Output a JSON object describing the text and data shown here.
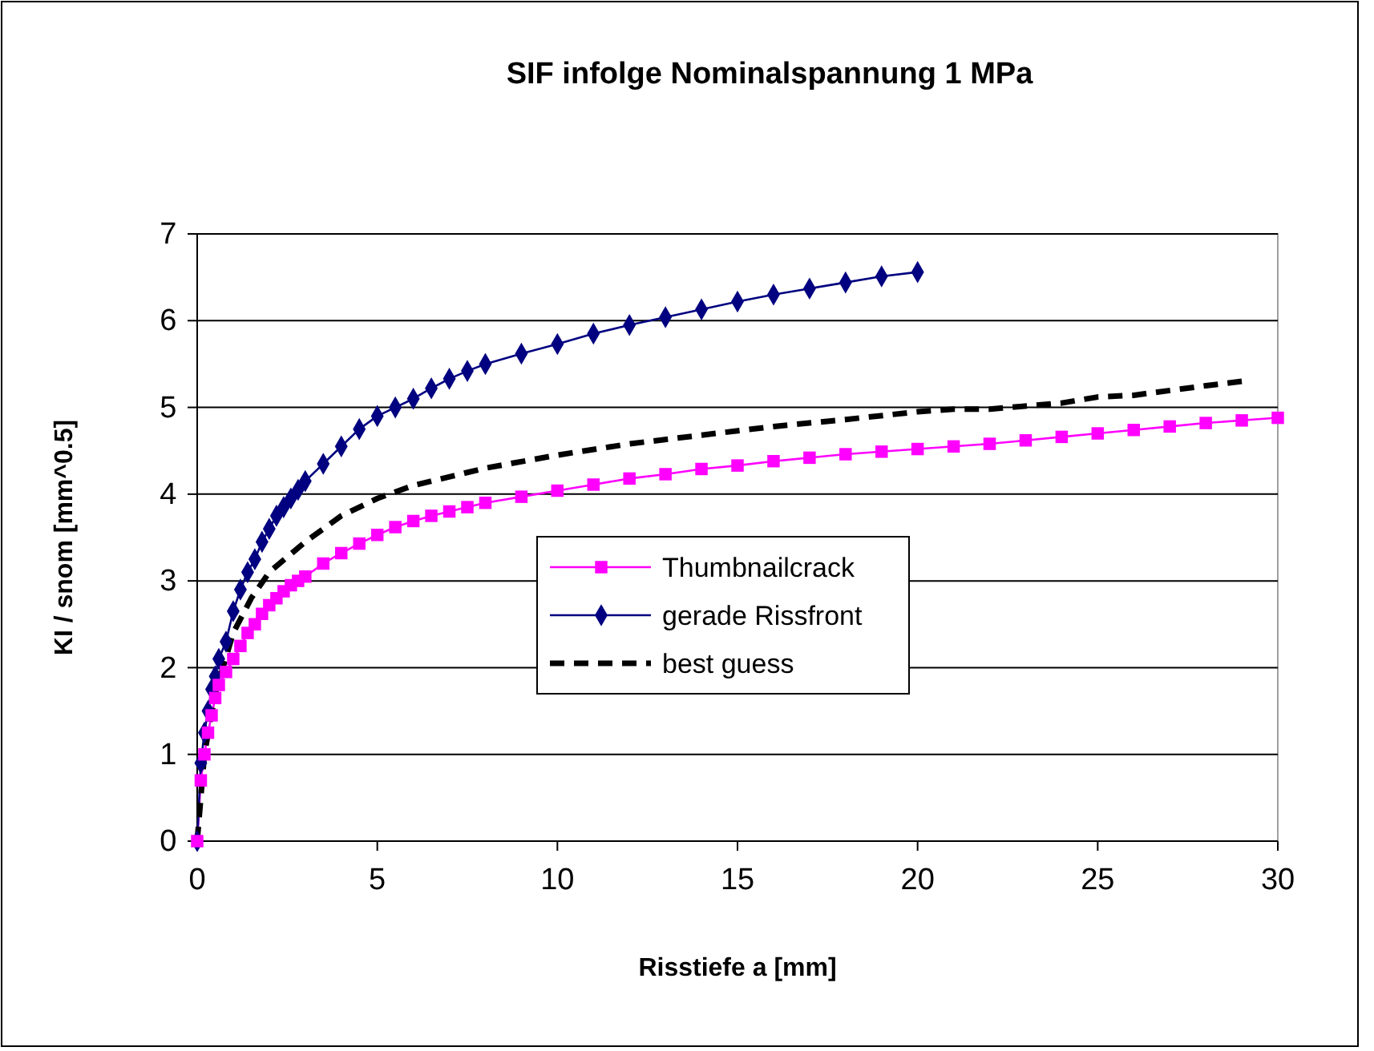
{
  "chart_data": {
    "type": "line",
    "title": "SIF infolge Nominalspannung 1 MPa",
    "xlabel": "Risstiefe a [mm]",
    "ylabel": "KI / snom [mm^0.5]",
    "xlim": [
      0,
      30
    ],
    "xticks": [
      0,
      5,
      10,
      15,
      20,
      25,
      30
    ],
    "ylim": [
      0,
      7
    ],
    "yticks": [
      0,
      1,
      2,
      3,
      4,
      5,
      6,
      7
    ],
    "grid": "y",
    "legend": "right",
    "series": [
      {
        "name": "Thumbnailcrack",
        "color": "#ff00ff",
        "marker": "square",
        "line_style": "solid",
        "x": [
          0,
          0.1,
          0.2,
          0.3,
          0.4,
          0.5,
          0.6,
          0.8,
          1.0,
          1.2,
          1.4,
          1.6,
          1.8,
          2.0,
          2.2,
          2.4,
          2.6,
          2.8,
          3.0,
          3.5,
          4,
          4.5,
          5,
          5.5,
          6,
          6.5,
          7,
          7.5,
          8,
          9,
          10,
          11,
          12,
          13,
          14,
          15,
          16,
          17,
          18,
          19,
          20,
          21,
          22,
          23,
          24,
          25,
          26,
          27,
          28,
          29,
          30
        ],
        "values": [
          0,
          0.7,
          1.0,
          1.25,
          1.45,
          1.65,
          1.8,
          1.95,
          2.1,
          2.25,
          2.4,
          2.5,
          2.62,
          2.72,
          2.8,
          2.88,
          2.95,
          3.0,
          3.05,
          3.2,
          3.32,
          3.43,
          3.53,
          3.62,
          3.69,
          3.75,
          3.8,
          3.85,
          3.9,
          3.97,
          4.04,
          4.11,
          4.18,
          4.23,
          4.29,
          4.33,
          4.38,
          4.42,
          4.46,
          4.49,
          4.52,
          4.55,
          4.58,
          4.62,
          4.66,
          4.7,
          4.74,
          4.78,
          4.82,
          4.85,
          4.88
        ]
      },
      {
        "name": "gerade Rissfront",
        "color": "#000080",
        "marker": "diamond",
        "line_style": "solid",
        "x": [
          0,
          0.1,
          0.2,
          0.3,
          0.4,
          0.5,
          0.6,
          0.8,
          1.0,
          1.2,
          1.4,
          1.6,
          1.8,
          2.0,
          2.2,
          2.4,
          2.6,
          2.8,
          3.0,
          3.5,
          4,
          4.5,
          5,
          5.5,
          6,
          6.5,
          7,
          7.5,
          8,
          9,
          10,
          11,
          12,
          13,
          14,
          15,
          16,
          17,
          18,
          19,
          20
        ],
        "values": [
          0,
          0.9,
          1.25,
          1.5,
          1.75,
          1.9,
          2.1,
          2.3,
          2.65,
          2.9,
          3.1,
          3.25,
          3.45,
          3.6,
          3.75,
          3.85,
          3.95,
          4.05,
          4.15,
          4.35,
          4.55,
          4.75,
          4.9,
          5.0,
          5.1,
          5.22,
          5.33,
          5.42,
          5.5,
          5.62,
          5.73,
          5.85,
          5.95,
          6.04,
          6.13,
          6.22,
          6.3,
          6.37,
          6.44,
          6.51,
          6.56
        ]
      },
      {
        "name": "best guess",
        "color": "#000000",
        "marker": "none",
        "line_style": "dashed",
        "x": [
          0,
          0.2,
          0.5,
          1,
          1.5,
          2,
          3,
          4,
          5,
          6,
          8,
          10,
          12,
          14,
          16,
          18,
          20,
          21,
          22,
          24,
          25,
          26,
          28,
          29
        ],
        "values": [
          0,
          1.0,
          1.7,
          2.4,
          2.8,
          3.1,
          3.45,
          3.75,
          3.95,
          4.1,
          4.3,
          4.45,
          4.58,
          4.68,
          4.78,
          4.86,
          4.95,
          4.98,
          4.98,
          5.05,
          5.12,
          5.14,
          5.25,
          5.3
        ]
      }
    ]
  }
}
